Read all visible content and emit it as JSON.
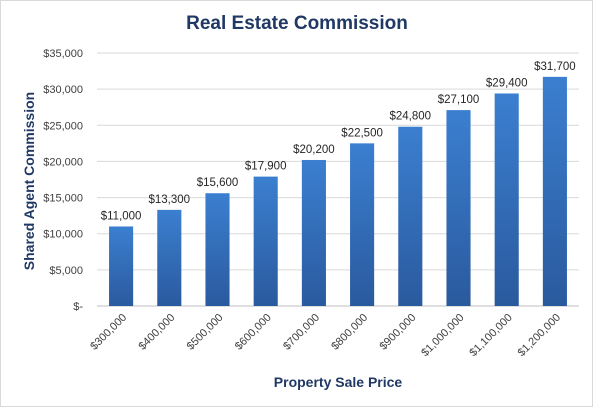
{
  "chart_data": {
    "type": "bar",
    "title": "Real Estate Commission",
    "xlabel": "Property Sale Price",
    "ylabel": "Shared Agent Commission",
    "categories": [
      "$300,000",
      "$400,000",
      "$500,000",
      "$600,000",
      "$700,000",
      "$800,000",
      "$900,000",
      "$1,000,000",
      "$1,100,000",
      "$1,200,000"
    ],
    "values": [
      11000,
      13300,
      15600,
      17900,
      20200,
      22500,
      24800,
      27100,
      29400,
      31700
    ],
    "data_labels": [
      "$11,000",
      "$13,300",
      "$15,600",
      "$17,900",
      "$20,200",
      "$22,500",
      "$24,800",
      "$27,100",
      "$29,400",
      "$31,700"
    ],
    "ylim": [
      0,
      35000
    ],
    "yticks": [
      0,
      5000,
      10000,
      15000,
      20000,
      25000,
      30000,
      35000
    ],
    "ytick_labels": [
      "$-",
      "$5,000",
      "$10,000",
      "$15,000",
      "$20,000",
      "$25,000",
      "$30,000",
      "$35,000"
    ],
    "grid": true,
    "legend": "none",
    "colors": {
      "bar_top": "#3b7fd0",
      "bar_bottom": "#2a5a9e",
      "title": "#1f3864"
    }
  }
}
